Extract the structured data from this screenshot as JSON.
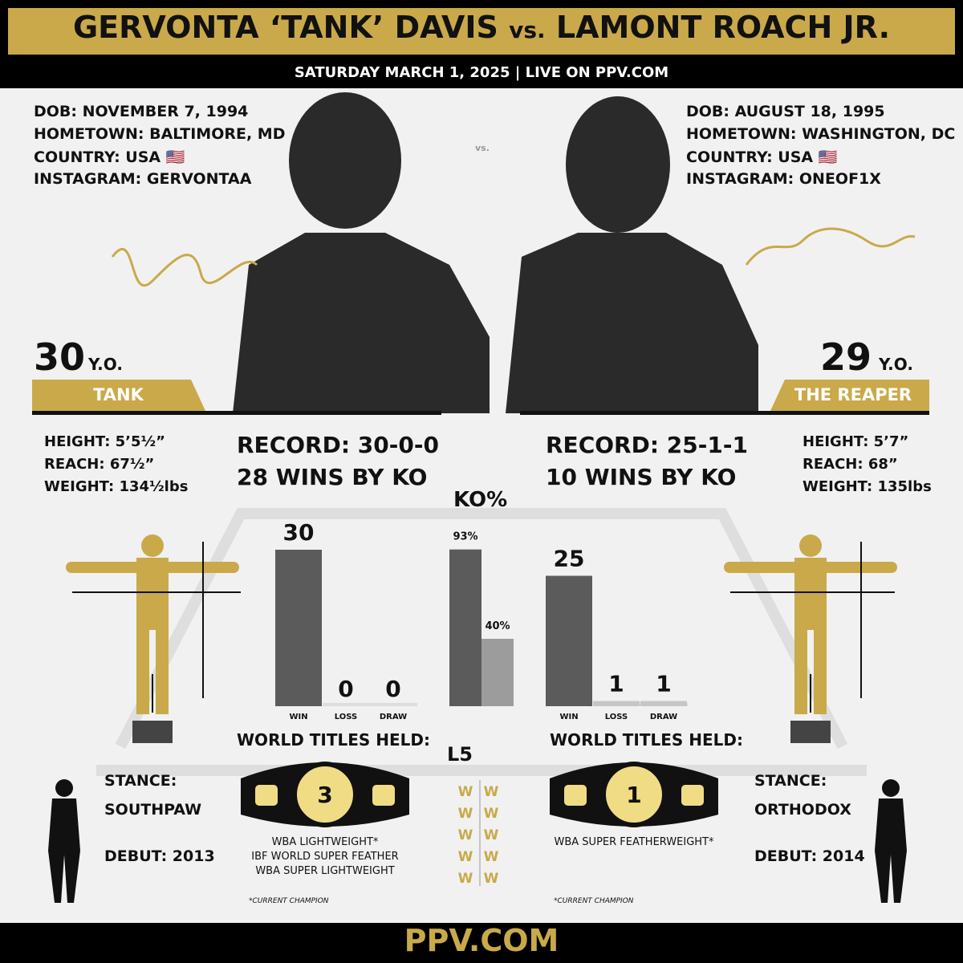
{
  "header": {
    "title_left": "GERVONTA ‘TANK’ DAVIS",
    "vs": "vs.",
    "title_right": "LAMONT ROACH JR.",
    "subtitle": "SATURDAY MARCH 1, 2025 | LIVE ON PPV.COM"
  },
  "photo_vs": "vs.",
  "fighters": [
    {
      "dob": "DOB: NOVEMBER 7, 1994",
      "hometown": "HOMETOWN: BALTIMORE, MD",
      "country": "COUNTRY: USA 🇺🇸",
      "instagram": "INSTAGRAM: GERVONTAA",
      "age": 30,
      "age_unit": "Y.O.",
      "nickname": "TANK",
      "height": "HEIGHT: 5’5½”",
      "reach": "REACH: 67½”",
      "weight": "WEIGHT: 134½lbs",
      "record": "RECORD: 30-0-0",
      "ko_wins": "28 WINS BY KO",
      "stance_label": "STANCE:",
      "stance": "SOUTHPAW",
      "debut": "DEBUT: 2013",
      "titles_heading": "WORLD TITLES HELD:",
      "titles_count": 3,
      "titles": [
        "WBA LIGHTWEIGHT*",
        "IBF WORLD SUPER FEATHER",
        "WBA SUPER LIGHTWEIGHT"
      ],
      "titles_note": "*CURRENT CHAMPION",
      "last5": [
        "W",
        "W",
        "W",
        "W",
        "W"
      ]
    },
    {
      "dob": "DOB: AUGUST 18, 1995",
      "hometown": "HOMETOWN: WASHINGTON, DC",
      "country": "COUNTRY: USA 🇺🇸",
      "instagram": "INSTAGRAM: ONEOF1X",
      "age": 29,
      "age_unit": "Y.O.",
      "nickname": "THE REAPER",
      "height": "HEIGHT: 5’7”",
      "reach": "REACH: 68”",
      "weight": "WEIGHT: 135lbs",
      "record": "RECORD: 25-1-1",
      "ko_wins": "10 WINS BY KO",
      "stance_label": "STANCE:",
      "stance": "ORTHODOX",
      "debut": "DEBUT: 2014",
      "titles_heading": "WORLD TITLES HELD:",
      "titles_count": 1,
      "titles": [
        "WBA SUPER FEATHERWEIGHT*"
      ],
      "titles_note": "*CURRENT CHAMPION",
      "last5": [
        "W",
        "W",
        "W",
        "W",
        "W"
      ]
    }
  ],
  "record_chart": [
    {
      "type": "bar",
      "categories": [
        "WIN",
        "LOSS",
        "DRAW"
      ],
      "values": [
        30,
        0,
        0
      ]
    },
    {
      "type": "bar",
      "categories": [
        "WIN",
        "LOSS",
        "DRAW"
      ],
      "values": [
        25,
        1,
        1
      ]
    }
  ],
  "ko_chart": {
    "type": "bar",
    "title": "KO%",
    "values": [
      93,
      40
    ],
    "value_labels": [
      "93%",
      "40%"
    ]
  },
  "last5_title": "L5",
  "footer": "PPV.COM"
}
